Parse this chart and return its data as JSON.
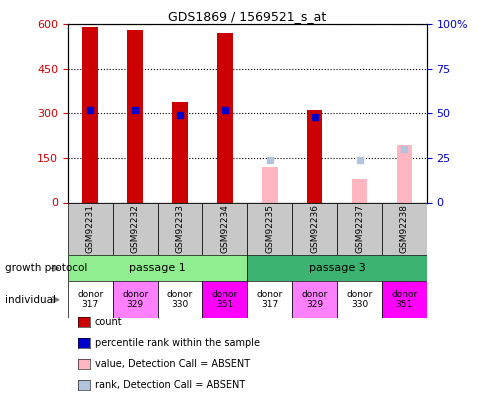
{
  "title": "GDS1869 / 1569521_s_at",
  "samples": [
    "GSM92231",
    "GSM92232",
    "GSM92233",
    "GSM92234",
    "GSM92235",
    "GSM92236",
    "GSM92237",
    "GSM92238"
  ],
  "count_values": [
    590,
    580,
    340,
    570,
    null,
    310,
    null,
    null
  ],
  "count_absent_values": [
    null,
    null,
    null,
    null,
    120,
    null,
    80,
    195
  ],
  "percentile_rank": [
    52,
    52,
    49,
    52,
    null,
    48,
    null,
    null
  ],
  "percentile_absent": [
    null,
    null,
    null,
    null,
    24,
    null,
    24,
    30
  ],
  "ylim_left": [
    0,
    600
  ],
  "ylim_right": [
    0,
    100
  ],
  "yticks_left": [
    0,
    150,
    300,
    450,
    600
  ],
  "yticks_right": [
    0,
    25,
    50,
    75,
    100
  ],
  "passage_1_color": "#90EE90",
  "passage_3_color": "#3CB371",
  "donor_labels": [
    "donor\n317",
    "donor\n329",
    "donor\n330",
    "donor\n351",
    "donor\n317",
    "donor\n329",
    "donor\n330",
    "donor\n351"
  ],
  "donor_colors": [
    "white",
    "#FF80FF",
    "white",
    "#FF00FF",
    "white",
    "#FF80FF",
    "white",
    "#FF00FF"
  ],
  "growth_protocol_label": "growth protocol",
  "individual_label": "individual",
  "count_color": "#CC0000",
  "percentile_color": "#0000CC",
  "absent_count_color": "#FFB6C1",
  "absent_rank_color": "#B0C4DE",
  "bar_width": 0.35,
  "tick_label_fontsize": 7,
  "gsm_row_color": "#C8C8C8"
}
